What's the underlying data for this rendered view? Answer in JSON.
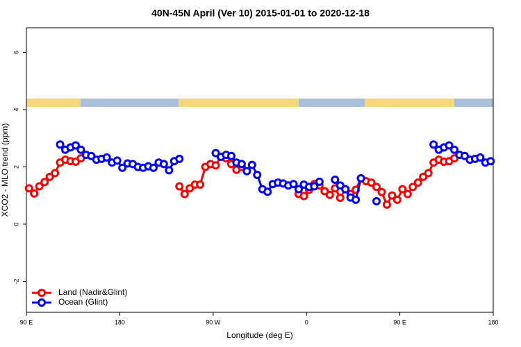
{
  "chart_data": {
    "type": "line",
    "title": "40N-45N April (Ver 10)   2015-01-01 to 2020-12-18",
    "xlabel": "Longitude (deg E)",
    "ylabel": "XCO2 - MLO trend (ppm)",
    "xlim": [
      90,
      540
    ],
    "ylim": [
      -3.08,
      6.86
    ],
    "xticks": [
      {
        "value": 90,
        "label": "90 E"
      },
      180,
      {
        "value": 270,
        "label": "90 W"
      },
      {
        "value": 360,
        "label": "0"
      },
      {
        "value": 450,
        "label": "90 E"
      },
      {
        "value": 540,
        "label": "180"
      }
    ],
    "yticks": [
      -2,
      0,
      2,
      4,
      6
    ],
    "legend": "bottom-left",
    "x": [
      92.5,
      97.5,
      102.5,
      107.5,
      112.5,
      117.5,
      122.5,
      127.5,
      132.5,
      137.5,
      142.5,
      147.5,
      152.5,
      157.5,
      162.5,
      167.5,
      172.5,
      177.5,
      182.5,
      187.5,
      192.5,
      197.5,
      202.5,
      207.5,
      212.5,
      217.5,
      222.5,
      227.5,
      232.5,
      237.5,
      242.5,
      247.5,
      252.5,
      257.5,
      262.5,
      267.5,
      272.5,
      277.5,
      282.5,
      287.5,
      292.5,
      297.5,
      302.5,
      307.5,
      312.5,
      317.5,
      322.5,
      327.5,
      332.5,
      337.5,
      342.5,
      347.5,
      352.5,
      357.5,
      362.5,
      367.5,
      372.5,
      377.5,
      382.5,
      387.5,
      392.5,
      397.5,
      402.5,
      407.5,
      412.5,
      417.5,
      422.5,
      427.5,
      432.5,
      437.5,
      442.5,
      447.5,
      452.5,
      457.5,
      462.5,
      467.5,
      472.5,
      477.5,
      482.5,
      487.5,
      492.5,
      497.5,
      502.5,
      507.5,
      512.5,
      517.5,
      522.5,
      527.5,
      532.5,
      537.5
    ],
    "series": [
      {
        "name": "Land (Nadir&Glint)",
        "color": "#ff0000",
        "values": [
          1.25,
          1.07,
          1.32,
          1.47,
          1.65,
          1.78,
          2.15,
          2.25,
          2.2,
          2.18,
          2.3,
          null,
          null,
          null,
          null,
          null,
          null,
          null,
          null,
          null,
          null,
          null,
          null,
          null,
          null,
          null,
          null,
          null,
          null,
          1.32,
          1.05,
          1.25,
          1.38,
          1.38,
          2.0,
          2.1,
          2.05,
          2.35,
          2.3,
          2.1,
          1.9,
          2.0,
          null,
          null,
          null,
          null,
          null,
          null,
          null,
          null,
          null,
          null,
          1.05,
          0.98,
          1.2,
          1.4,
          1.35,
          1.15,
          1.02,
          1.25,
          0.92,
          1.22,
          1.05,
          1.2,
          1.6,
          1.5,
          1.45,
          1.3,
          1.12,
          0.68,
          1.0,
          0.85,
          1.22,
          1.05,
          1.3,
          1.45,
          1.65,
          1.78,
          2.15,
          2.25,
          2.18,
          2.2,
          2.3,
          null,
          null,
          null,
          null,
          null,
          null,
          null
        ]
      },
      {
        "name": "Ocean (Glint)",
        "color": "#0000ff",
        "values": [
          null,
          null,
          null,
          null,
          null,
          null,
          2.78,
          2.6,
          2.68,
          2.75,
          2.6,
          2.42,
          2.38,
          2.25,
          2.28,
          2.33,
          2.15,
          2.22,
          1.97,
          2.12,
          2.1,
          2.0,
          1.97,
          2.02,
          1.97,
          2.15,
          2.1,
          1.88,
          2.2,
          2.28,
          null,
          null,
          null,
          null,
          null,
          null,
          2.48,
          2.35,
          2.42,
          2.38,
          2.15,
          2.1,
          1.85,
          2.07,
          1.72,
          1.22,
          1.13,
          1.4,
          1.45,
          1.42,
          1.35,
          1.4,
          1.22,
          1.38,
          1.3,
          1.32,
          1.48,
          null,
          null,
          1.55,
          1.35,
          1.22,
          0.93,
          0.85,
          1.6,
          null,
          null,
          0.8,
          null,
          null,
          null,
          null,
          null,
          null,
          null,
          null,
          null,
          null,
          2.78,
          2.6,
          2.68,
          2.75,
          2.6,
          2.42,
          2.38,
          2.25,
          2.28,
          2.33,
          2.15,
          2.2
        ]
      }
    ]
  }
}
